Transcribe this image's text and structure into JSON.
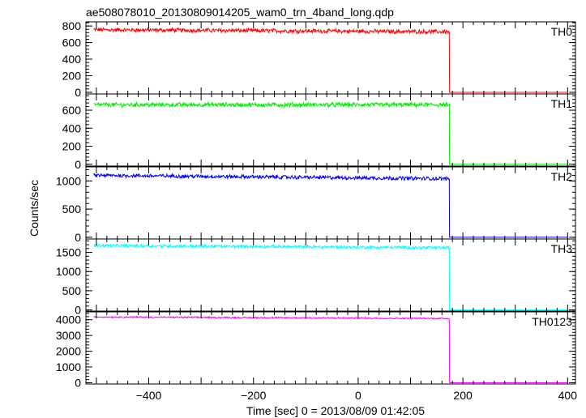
{
  "chart_data": {
    "type": "line",
    "title": "ae508078010_20130809014205_wam0_trn_4band_long.qdp",
    "xlabel": "Time [sec] 0 = 2013/08/09 01:42:05",
    "ylabel": "Counts/sec",
    "xlim": [
      -520,
      415
    ],
    "x_ticks": [
      -400,
      -200,
      0,
      200,
      400
    ],
    "x_tick_labels": [
      "−400",
      "−200",
      "0",
      "200",
      "400"
    ],
    "data_start": -505,
    "drop_time": 174,
    "data_end": 400,
    "after_drop_level": 0,
    "panels": [
      {
        "name": "TH0",
        "color": "#ff0000",
        "ylim": [
          -20,
          850
        ],
        "yticks": [
          0,
          200,
          400,
          600,
          800
        ],
        "level_start": 755,
        "level_end": 730,
        "noise": 22
      },
      {
        "name": "TH1",
        "color": "#00ee00",
        "ylim": [
          -20,
          780
        ],
        "yticks": [
          0,
          200,
          400,
          600
        ],
        "level_start": 660,
        "level_end": 660,
        "noise": 22
      },
      {
        "name": "TH2",
        "color": "#0000ff",
        "ylim": [
          -30,
          1250
        ],
        "yticks": [
          0,
          500,
          1000
        ],
        "level_start": 1100,
        "level_end": 1040,
        "noise": 30
      },
      {
        "name": "TH3",
        "color": "#00ffff",
        "ylim": [
          -30,
          1850
        ],
        "yticks": [
          0,
          500,
          1000,
          1500
        ],
        "level_start": 1680,
        "level_end": 1620,
        "noise": 35
      },
      {
        "name": "TH0123",
        "color": "#ff00ff",
        "ylim": [
          -80,
          4500
        ],
        "yticks": [
          0,
          1000,
          2000,
          3000,
          4000
        ],
        "level_start": 4180,
        "level_end": 4080,
        "noise": 40
      }
    ]
  }
}
